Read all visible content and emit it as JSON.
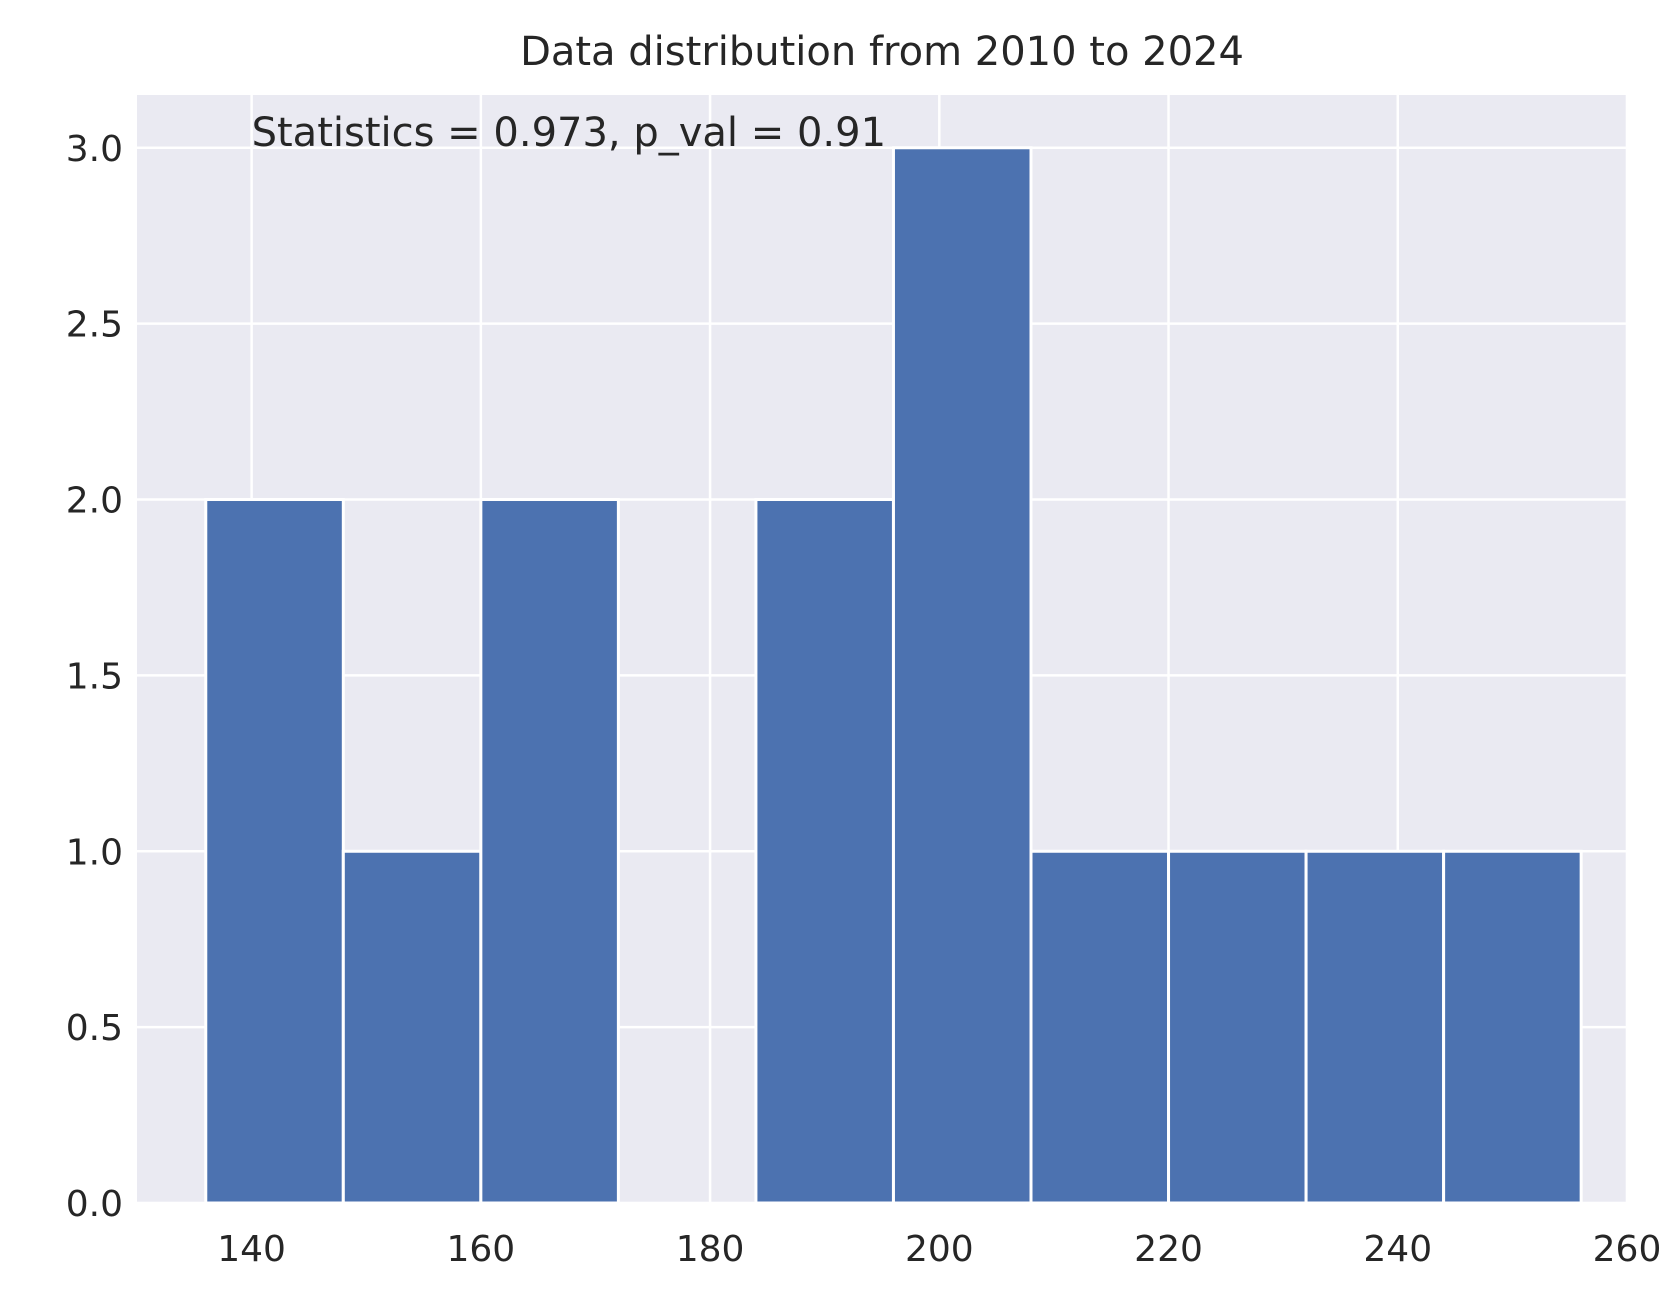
{
  "chart_data": {
    "type": "bar",
    "title": "Data distribution from 2010 to 2024",
    "xlabel": "",
    "ylabel": "",
    "annotation": "Statistics = 0.973, p_val = 0.91",
    "bins": [
      {
        "start": 136,
        "end": 148,
        "count": 2
      },
      {
        "start": 148,
        "end": 160,
        "count": 1
      },
      {
        "start": 160,
        "end": 172,
        "count": 2
      },
      {
        "start": 172,
        "end": 184,
        "count": 0
      },
      {
        "start": 184,
        "end": 196,
        "count": 2
      },
      {
        "start": 196,
        "end": 208,
        "count": 3
      },
      {
        "start": 208,
        "end": 220,
        "count": 1
      },
      {
        "start": 220,
        "end": 232,
        "count": 1
      },
      {
        "start": 232,
        "end": 244,
        "count": 1
      },
      {
        "start": 244,
        "end": 256,
        "count": 1
      }
    ],
    "xlim": [
      130,
      260
    ],
    "ylim": [
      0,
      3.15
    ],
    "xticks": [
      140,
      160,
      180,
      200,
      220,
      240,
      260
    ],
    "yticks": [
      0.0,
      0.5,
      1.0,
      1.5,
      2.0,
      2.5,
      3.0
    ],
    "xtick_labels": [
      "140",
      "160",
      "180",
      "200",
      "220",
      "240",
      "260"
    ],
    "ytick_labels": [
      "0.0",
      "0.5",
      "1.0",
      "1.5",
      "2.0",
      "2.5",
      "3.0"
    ],
    "grid": true,
    "colors": {
      "bar": "#4c72b0",
      "background": "#eaeaf2",
      "grid": "#ffffff",
      "text": "#262626"
    }
  }
}
